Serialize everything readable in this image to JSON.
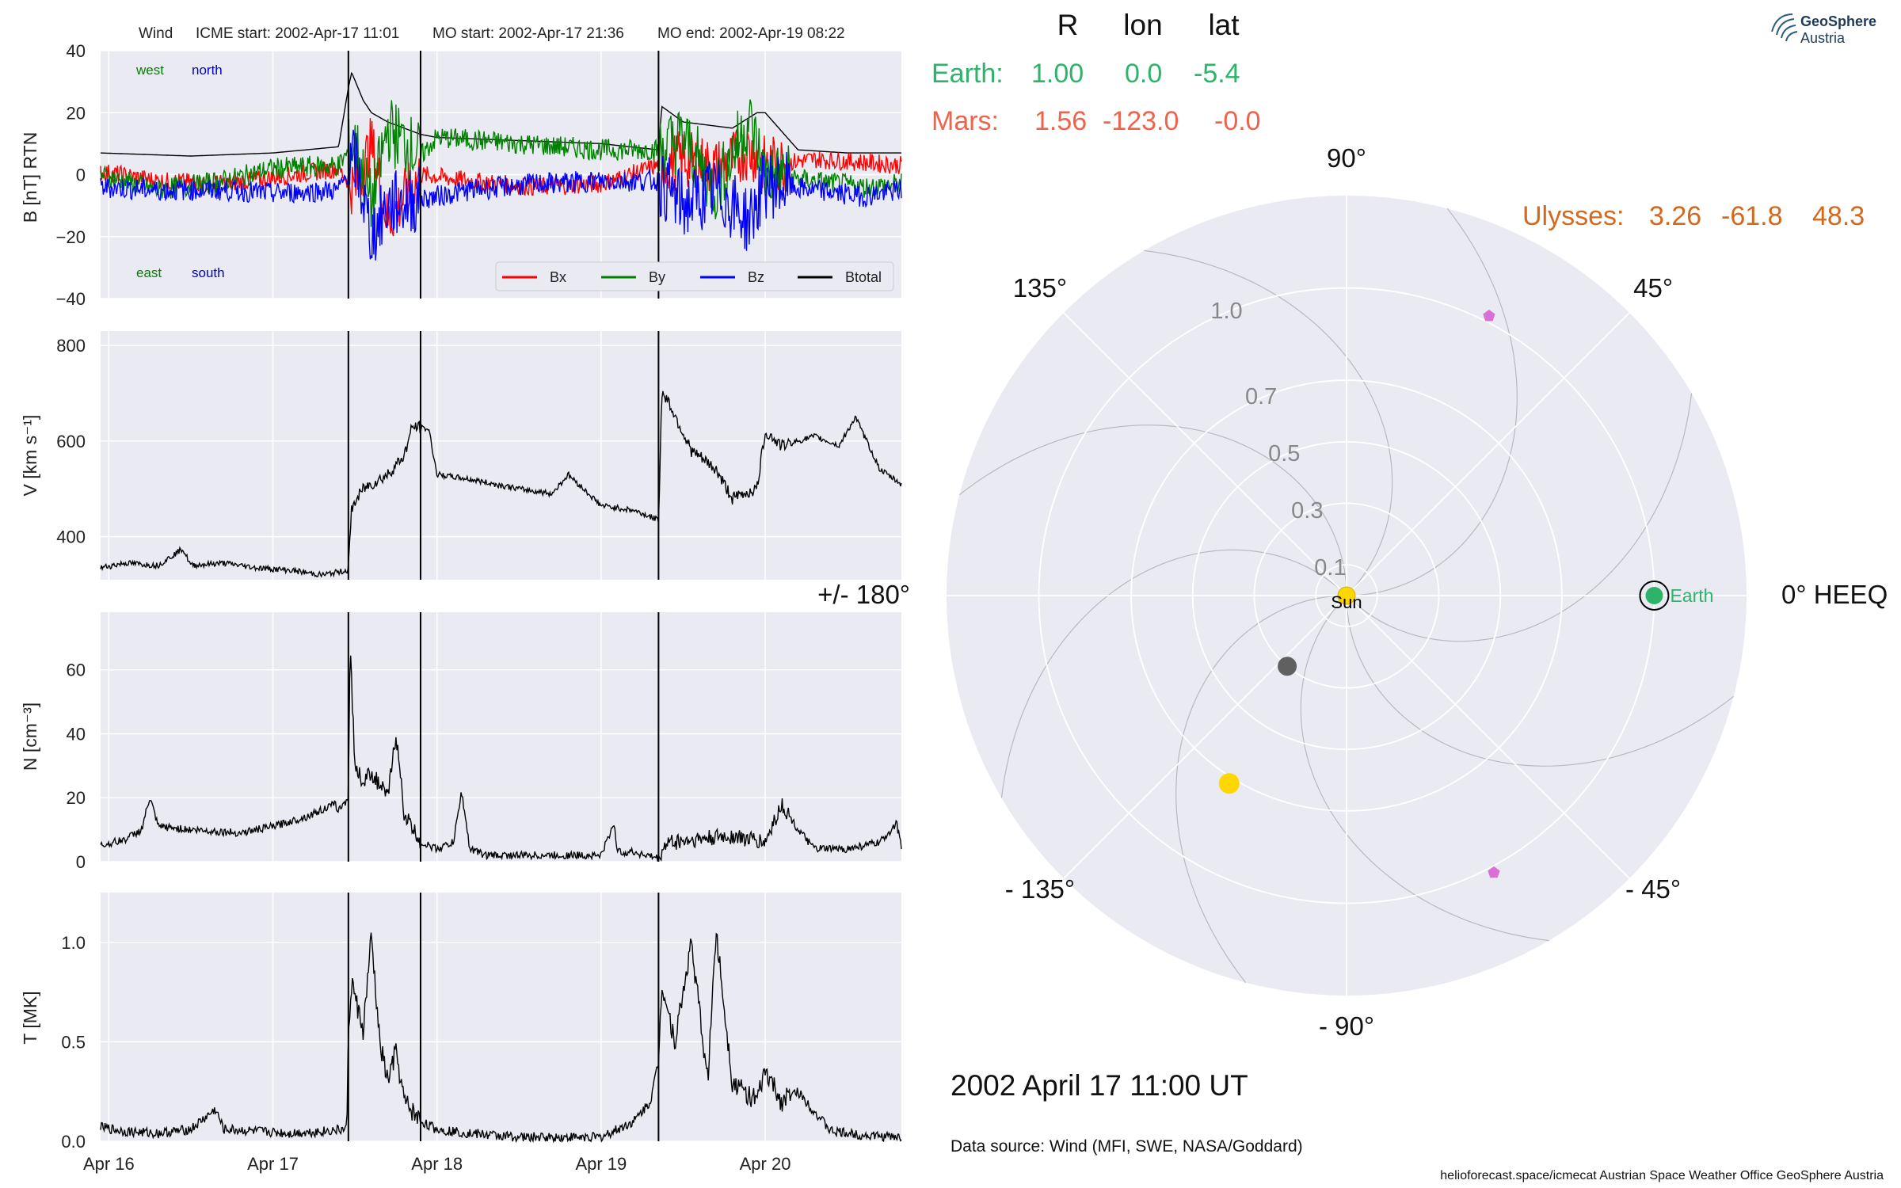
{
  "header": {
    "spacecraft": "Wind",
    "icme_start": "ICME start: 2002-Apr-17 11:01",
    "mo_start": "MO start: 2002-Apr-17 21:36",
    "mo_end": "MO end: 2002-Apr-19 08:22"
  },
  "position_table": {
    "col_r": "R",
    "col_lon": "lon",
    "col_lat": "lat",
    "rows": [
      {
        "name": "Earth:",
        "r": "1.00",
        "lon": "0.0",
        "lat": "-5.4",
        "color": "#2fb36b"
      },
      {
        "name": "Mars:",
        "r": "1.56",
        "lon": "-123.0",
        "lat": "-0.0",
        "color": "#f0634b"
      },
      {
        "name": "Ulysses:",
        "r": "3.26",
        "lon": "-61.8",
        "lat": "48.3",
        "color": "#d2691e"
      }
    ]
  },
  "logo": {
    "line1": "GeoSphere",
    "line2": "Austria"
  },
  "date_label": "2002 April 17  11:00 UT",
  "data_source": "Data source: Wind (MFI, SWE, NASA/Goddard)",
  "footer": "helioforecast.space/icmecat   Austrian Space Weather Office   GeoSphere Austria",
  "colors": {
    "bx": "#ff0000",
    "by": "#008000",
    "bz": "#0000ff",
    "btotal": "#000000",
    "panel_bg": "#eaeaf2"
  },
  "chart_data": [
    {
      "type": "line",
      "ylabel": "B [nT] RTN",
      "ylim": [
        -40,
        40
      ],
      "yticks": [
        -40,
        -20,
        0,
        20,
        40
      ],
      "xlim_days": [
        15.95,
        20.83
      ],
      "xtick_labels": [
        "Apr 16",
        "Apr 17",
        "Apr 18",
        "Apr 19",
        "Apr 20"
      ],
      "event_lines_days": [
        17.46,
        17.9,
        19.35
      ],
      "annotations": {
        "top_left": "west",
        "top_right": "north",
        "bottom_left": "east",
        "bottom_right": "south"
      },
      "legend": [
        "Bx",
        "By",
        "Bz",
        "Btotal"
      ],
      "series": [
        {
          "name": "Btotal",
          "color": "#000000",
          "x": [
            15.95,
            16.5,
            17.0,
            17.4,
            17.46,
            17.48,
            17.55,
            17.6,
            17.7,
            17.8,
            17.9,
            18.0,
            18.5,
            19.0,
            19.35,
            19.37,
            19.5,
            19.8,
            19.95,
            20.0,
            20.2,
            20.5,
            20.83
          ],
          "values": [
            7,
            6,
            7,
            9,
            28,
            33,
            24,
            20,
            17,
            15,
            13,
            12,
            11,
            10,
            8,
            22,
            17,
            15,
            20,
            20,
            8,
            7,
            7
          ]
        },
        {
          "name": "Bx",
          "color": "#ff0000",
          "x": [
            15.95,
            16.3,
            16.7,
            17.0,
            17.4,
            17.5,
            17.6,
            17.7,
            17.9,
            18.2,
            18.6,
            19.0,
            19.35,
            19.5,
            19.7,
            19.9,
            20.0,
            20.3,
            20.6,
            20.83
          ],
          "values": [
            1,
            -2,
            -3,
            -1,
            2,
            -5,
            10,
            -15,
            0,
            -2,
            -4,
            -3,
            3,
            5,
            2,
            8,
            3,
            5,
            4,
            3
          ]
        },
        {
          "name": "By",
          "color": "#008000",
          "x": [
            15.95,
            16.3,
            16.7,
            17.0,
            17.4,
            17.5,
            17.6,
            17.7,
            17.9,
            18.0,
            18.5,
            19.0,
            19.35,
            19.5,
            19.7,
            19.9,
            20.0,
            20.3,
            20.6,
            20.83
          ],
          "values": [
            0,
            -5,
            -2,
            2,
            3,
            10,
            -10,
            15,
            6,
            12,
            10,
            8,
            8,
            12,
            -5,
            18,
            0,
            -2,
            -4,
            -3
          ]
        },
        {
          "name": "Bz",
          "color": "#0000ff",
          "x": [
            15.95,
            16.3,
            16.7,
            17.0,
            17.4,
            17.5,
            17.6,
            17.7,
            17.9,
            18.2,
            18.6,
            19.0,
            19.35,
            19.5,
            19.7,
            19.9,
            20.0,
            20.3,
            20.6,
            20.83
          ],
          "values": [
            -4,
            -5,
            -5,
            -6,
            -5,
            5,
            -20,
            -10,
            -8,
            -5,
            -3,
            -2,
            -2,
            -10,
            -5,
            -15,
            -3,
            -5,
            -7,
            -5
          ]
        }
      ]
    },
    {
      "type": "line",
      "ylabel": "V [km s⁻¹]",
      "ylim": [
        310,
        830
      ],
      "yticks": [
        400,
        600,
        800
      ],
      "xlim_days": [
        15.95,
        20.83
      ],
      "event_lines_days": [
        17.46,
        17.9,
        19.35
      ],
      "series": [
        {
          "name": "V",
          "color": "#000000",
          "x": [
            15.95,
            16.1,
            16.3,
            16.45,
            16.5,
            16.7,
            16.9,
            17.1,
            17.3,
            17.46,
            17.48,
            17.55,
            17.7,
            17.8,
            17.85,
            17.95,
            18.0,
            18.2,
            18.5,
            18.7,
            18.8,
            19.0,
            19.2,
            19.35,
            19.37,
            19.4,
            19.55,
            19.7,
            19.8,
            19.95,
            20.0,
            20.1,
            20.3,
            20.45,
            20.55,
            20.7,
            20.83
          ],
          "values": [
            335,
            345,
            340,
            375,
            340,
            345,
            335,
            330,
            320,
            330,
            460,
            500,
            530,
            570,
            630,
            625,
            530,
            520,
            500,
            490,
            530,
            465,
            455,
            435,
            700,
            690,
            580,
            540,
            480,
            500,
            620,
            590,
            610,
            590,
            650,
            540,
            510
          ]
        }
      ]
    },
    {
      "type": "line",
      "ylabel": "N [cm⁻³]",
      "ylim": [
        0,
        78
      ],
      "yticks": [
        0,
        20,
        40,
        60
      ],
      "xlim_days": [
        15.95,
        20.83
      ],
      "event_lines_days": [
        17.46,
        17.9,
        19.35
      ],
      "series": [
        {
          "name": "N",
          "color": "#000000",
          "x": [
            15.95,
            16.1,
            16.2,
            16.25,
            16.3,
            16.5,
            16.8,
            17.0,
            17.2,
            17.38,
            17.4,
            17.46,
            17.47,
            17.5,
            17.55,
            17.6,
            17.7,
            17.75,
            17.8,
            17.9,
            18.0,
            18.1,
            18.15,
            18.2,
            18.3,
            18.5,
            19.0,
            19.08,
            19.1,
            19.2,
            19.35,
            19.4,
            19.6,
            19.8,
            20.0,
            20.1,
            20.2,
            20.3,
            20.5,
            20.7,
            20.8,
            20.83
          ],
          "values": [
            5,
            7,
            10,
            20,
            11,
            10,
            9,
            11,
            14,
            18,
            16,
            20,
            68,
            30,
            25,
            28,
            20,
            40,
            15,
            6,
            4,
            6,
            22,
            4,
            2,
            2,
            2,
            12,
            3,
            3,
            1,
            6,
            7,
            8,
            6,
            18,
            10,
            4,
            4,
            6,
            12,
            5
          ]
        }
      ]
    },
    {
      "type": "line",
      "ylabel": "T [MK]",
      "ylim": [
        0,
        1.25
      ],
      "yticks": [
        0.0,
        0.5,
        1.0
      ],
      "xlim_days": [
        15.95,
        20.83
      ],
      "xtick_labels": [
        "Apr 16",
        "Apr 17",
        "Apr 18",
        "Apr 19",
        "Apr 20"
      ],
      "event_lines_days": [
        17.46,
        17.9,
        19.35
      ],
      "series": [
        {
          "name": "T",
          "color": "#000000",
          "x": [
            15.95,
            16.1,
            16.3,
            16.5,
            16.65,
            16.7,
            16.9,
            17.1,
            17.3,
            17.45,
            17.46,
            17.48,
            17.55,
            17.6,
            17.65,
            17.7,
            17.75,
            17.8,
            17.9,
            18.0,
            18.2,
            18.5,
            19.0,
            19.2,
            19.3,
            19.35,
            19.37,
            19.45,
            19.55,
            19.65,
            19.7,
            19.8,
            19.95,
            20.0,
            20.1,
            20.2,
            20.4,
            20.6,
            20.83
          ],
          "values": [
            0.07,
            0.05,
            0.04,
            0.06,
            0.16,
            0.06,
            0.05,
            0.04,
            0.05,
            0.06,
            0.55,
            0.8,
            0.55,
            1.03,
            0.5,
            0.3,
            0.45,
            0.2,
            0.1,
            0.06,
            0.04,
            0.02,
            0.02,
            0.1,
            0.2,
            0.4,
            0.8,
            0.5,
            1.0,
            0.3,
            1.06,
            0.3,
            0.2,
            0.35,
            0.2,
            0.25,
            0.05,
            0.03,
            0.02
          ]
        }
      ]
    },
    {
      "type": "scatter",
      "subtype": "polar",
      "r_ticks": [
        0.1,
        0.3,
        0.5,
        0.7,
        1.0
      ],
      "angle_labels": [
        "90°",
        "45°",
        "0° HEEQ",
        "- 45°",
        "- 90°",
        "- 135°",
        "+/- 180°",
        "135°"
      ],
      "sun_label": "Sun",
      "points": [
        {
          "name": "Sun",
          "lon": 0,
          "r": 0,
          "color": "#ffd700"
        },
        {
          "name": "Earth",
          "lon": 0,
          "r": 1.0,
          "color": "#2fb36b"
        },
        {
          "name": "",
          "lon": -130,
          "r": 0.3,
          "color": "#606060"
        },
        {
          "name": "",
          "lon": -122,
          "r": 0.72,
          "color": "#ffd700"
        },
        {
          "name": "",
          "lon": 63,
          "r": 1.02,
          "color": "#da70d6"
        },
        {
          "name": "",
          "lon": -62,
          "r": 1.02,
          "color": "#da70d6"
        }
      ]
    }
  ]
}
